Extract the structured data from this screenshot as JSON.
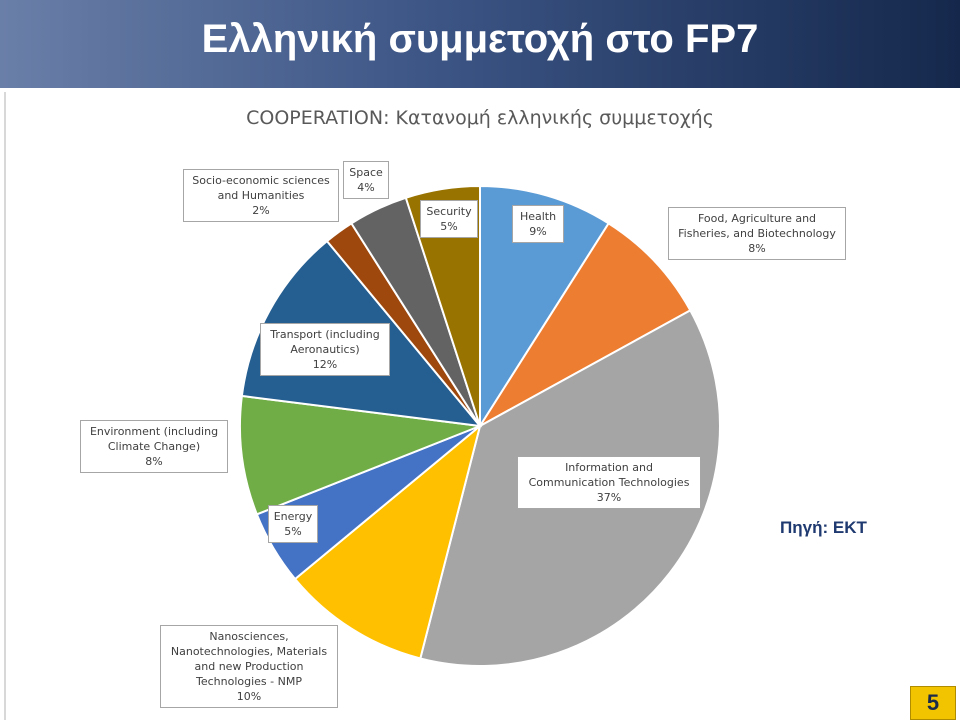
{
  "header": {
    "title": "Ελληνική συμμετοχή στο FP7"
  },
  "source_label": "Πηγή: ΕΚΤ",
  "page_number": "5",
  "chart_data": {
    "type": "pie",
    "title": "COOPERATION: Κατανομή ελληνικής συμμετοχής",
    "slices": [
      {
        "label": "Health",
        "value": 9,
        "value_label": "9%",
        "color": "#5b9bd5"
      },
      {
        "label": "Food, Agriculture and Fisheries, and Biotechnology",
        "value": 8,
        "value_label": "8%",
        "color": "#ed7d31"
      },
      {
        "label": "Information and Communication Technologies",
        "value": 37,
        "value_label": "37%",
        "color": "#a5a5a5"
      },
      {
        "label": "Nanosciences, Nanotechnologies, Materials and new Production Technologies - NMP",
        "value": 10,
        "value_label": "10%",
        "color": "#ffc000"
      },
      {
        "label": "Energy",
        "value": 5,
        "value_label": "5%",
        "color": "#4472c4"
      },
      {
        "label": "Environment (including Climate Change)",
        "value": 8,
        "value_label": "8%",
        "color": "#70ad47"
      },
      {
        "label": "Transport (including Aeronautics)",
        "value": 12,
        "value_label": "12%",
        "color": "#255e91"
      },
      {
        "label": "Socio-economic sciences and Humanities",
        "value": 2,
        "value_label": "2%",
        "color": "#9e480e"
      },
      {
        "label": "Space",
        "value": 4,
        "value_label": "4%",
        "color": "#636363"
      },
      {
        "label": "Security",
        "value": 5,
        "value_label": "5%",
        "color": "#997300"
      }
    ]
  }
}
